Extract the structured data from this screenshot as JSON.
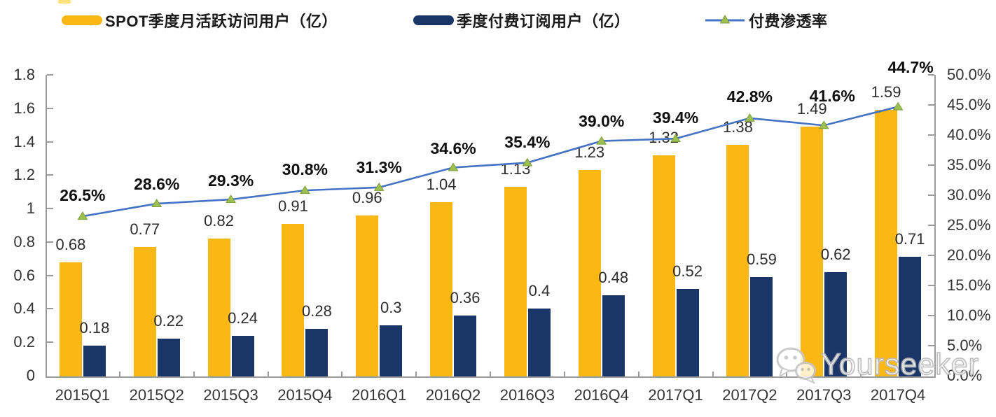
{
  "chart_data": {
    "type": "bar",
    "subtype": "combo-bar-line-dual-axis",
    "title": "",
    "categories": [
      "2015Q1",
      "2015Q2",
      "2015Q3",
      "2015Q4",
      "2016Q1",
      "2016Q2",
      "2016Q3",
      "2016Q4",
      "2017Q1",
      "2017Q2",
      "2017Q3",
      "2017Q4"
    ],
    "series": [
      {
        "name": "SPOT季度月活跃访问用户（亿）",
        "type": "bar",
        "axis": "left",
        "color": "#FBB714",
        "values": [
          0.68,
          0.77,
          0.82,
          0.91,
          0.96,
          1.04,
          1.13,
          1.23,
          1.32,
          1.38,
          1.49,
          1.59
        ],
        "labels": [
          "0.68",
          "0.77",
          "0.82",
          "0.91",
          "0.96",
          "1.04",
          "1.13",
          "1.23",
          "1.32",
          "1.38",
          "1.49",
          "1.59"
        ]
      },
      {
        "name": "季度付费订阅用户（亿）",
        "type": "bar",
        "axis": "left",
        "color": "#1A3668",
        "values": [
          0.18,
          0.22,
          0.24,
          0.28,
          0.3,
          0.36,
          0.4,
          0.48,
          0.52,
          0.59,
          0.62,
          0.71
        ],
        "labels": [
          "0.18",
          "0.22",
          "0.24",
          "0.28",
          "0.3",
          "0.36",
          "0.4",
          "0.48",
          "0.52",
          "0.59",
          "0.62",
          "0.71"
        ]
      },
      {
        "name": "付费渗透率",
        "type": "line",
        "axis": "right",
        "color": "#4472C4",
        "marker": "triangle",
        "marker_color": "#9DC050",
        "values": [
          26.5,
          28.6,
          29.3,
          30.8,
          31.3,
          34.6,
          35.4,
          39.0,
          39.4,
          42.8,
          41.6,
          44.7
        ],
        "labels": [
          "26.5%",
          "28.6%",
          "29.3%",
          "30.8%",
          "31.3%",
          "34.6%",
          "35.4%",
          "39.0%",
          "39.4%",
          "42.8%",
          "41.6%",
          "44.7%"
        ]
      }
    ],
    "left_axis": {
      "min": 0,
      "max": 1.8,
      "tick_values": [
        0,
        0.2,
        0.4,
        0.6,
        0.8,
        1,
        1.2,
        1.4,
        1.6,
        1.8
      ],
      "tick_labels": [
        "0",
        "0.2",
        "0.4",
        "0.6",
        "0.8",
        "1",
        "1.2",
        "1.4",
        "1.6",
        "1.8"
      ]
    },
    "right_axis": {
      "min": 0,
      "max": 50,
      "tick_values": [
        0,
        5,
        10,
        15,
        20,
        25,
        30,
        35,
        40,
        45,
        50
      ],
      "tick_labels": [
        "0.0%",
        "5.0%",
        "10.0%",
        "15.0%",
        "20.0%",
        "25.0%",
        "30.0%",
        "35.0%",
        "40.0%",
        "45.0%",
        "50.0%"
      ]
    },
    "grid": false,
    "legend_position": "top"
  },
  "colors": {
    "bar_primary": "#FBB714",
    "bar_secondary": "#1A3668",
    "line": "#4472C4",
    "marker_fill": "#9DC050",
    "marker_stroke": "#7E9E3C",
    "axis": "#9B9B9B"
  },
  "watermark": {
    "text": "Yourseeker",
    "icon": "wechat-icon"
  }
}
